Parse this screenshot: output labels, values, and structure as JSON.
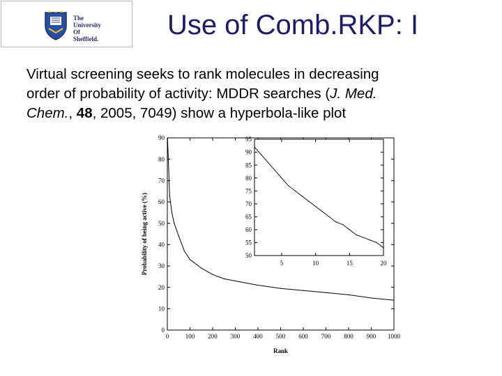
{
  "logo": {
    "lines": [
      "The",
      "University",
      "Of",
      "Sheffield."
    ]
  },
  "slide": {
    "title": "Use of Comb.RKP: I",
    "body": {
      "line1": "Virtual screening seeks to rank molecules in  decreasing",
      "line2": "order of probability of activity: MDDR searches (",
      "cite_journal": "J. Med.",
      "cite_journal2": "Chem.",
      "sep1": ", ",
      "cite_volume": "48",
      "line3_rest": ", 2005, 7049) show a hyperbola-like plot"
    }
  },
  "chart_data": [
    {
      "type": "line",
      "xlabel": "Rank",
      "ylabel": "Probability of being active (%)",
      "xlim": [
        0,
        1000
      ],
      "ylim": [
        0,
        90
      ],
      "xticks": [
        0,
        100,
        200,
        300,
        400,
        500,
        600,
        700,
        800,
        900,
        1000
      ],
      "yticks": [
        0,
        10,
        20,
        30,
        40,
        50,
        60,
        70,
        80,
        90
      ],
      "series": [
        {
          "x": [
            1,
            10,
            20,
            30,
            50,
            75,
            100,
            150,
            200,
            250,
            300,
            400,
            500,
            600,
            700,
            800,
            900,
            1000
          ],
          "values": [
            90,
            63,
            55,
            50,
            44,
            37,
            33,
            29,
            26,
            24,
            23,
            21,
            19.5,
            18.5,
            17.5,
            16.5,
            15,
            14
          ]
        }
      ]
    },
    {
      "type": "line",
      "xlim": [
        1,
        20
      ],
      "ylim": [
        50,
        95
      ],
      "xticks": [
        5,
        10,
        15,
        20
      ],
      "yticks": [
        50,
        55,
        60,
        65,
        70,
        75,
        80,
        85,
        90,
        95
      ],
      "series": [
        {
          "x": [
            1,
            2,
            3,
            4,
            5,
            6,
            7,
            8,
            9,
            10,
            11,
            12,
            13,
            14,
            15,
            16,
            17,
            18,
            19,
            20
          ],
          "values": [
            92,
            89,
            86,
            83,
            80,
            77,
            75,
            73,
            71,
            69,
            67,
            65,
            63,
            62,
            60,
            58,
            57,
            56,
            55,
            53
          ]
        }
      ]
    }
  ]
}
